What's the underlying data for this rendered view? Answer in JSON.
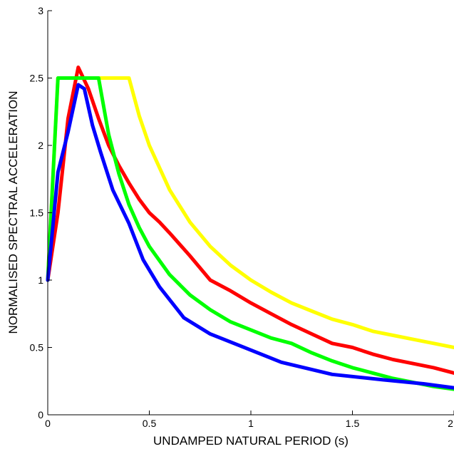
{
  "chart_data": {
    "type": "line",
    "xlabel": "UNDAMPED NATURAL PERIOD (s)",
    "ylabel": "NORMALISED SPECTRAL ACCELERATION",
    "xlim": [
      0,
      2
    ],
    "ylim": [
      0,
      3
    ],
    "x_ticks": [
      0,
      0.5,
      1,
      1.5,
      2
    ],
    "x_tick_labels": [
      "0",
      "0.5",
      "1",
      "1.5",
      "2"
    ],
    "y_ticks": [
      0,
      0.5,
      1,
      1.5,
      2,
      2.5,
      3
    ],
    "y_tick_labels": [
      "0",
      "0.5",
      "1",
      "1.5",
      "2",
      "2.5",
      "3"
    ],
    "grid": false,
    "series": [
      {
        "color": "#ffff00",
        "x": [
          0,
          0.05,
          0.4,
          0.45,
          0.5,
          0.6,
          0.7,
          0.8,
          0.9,
          1.0,
          1.1,
          1.2,
          1.3,
          1.4,
          1.5,
          1.6,
          1.7,
          1.8,
          1.9,
          2.0
        ],
        "y": [
          1.0,
          2.5,
          2.5,
          2.22,
          2.0,
          1.67,
          1.43,
          1.25,
          1.11,
          1.0,
          0.91,
          0.83,
          0.77,
          0.71,
          0.67,
          0.62,
          0.59,
          0.56,
          0.53,
          0.5
        ]
      },
      {
        "color": "#ff0000",
        "x": [
          0,
          0.05,
          0.1,
          0.15,
          0.2,
          0.25,
          0.3,
          0.35,
          0.4,
          0.45,
          0.5,
          0.55,
          0.6,
          0.7,
          0.8,
          0.9,
          1.0,
          1.1,
          1.2,
          1.3,
          1.4,
          1.5,
          1.6,
          1.7,
          1.8,
          1.9,
          2.0
        ],
        "y": [
          1.0,
          1.5,
          2.2,
          2.58,
          2.42,
          2.2,
          2.0,
          1.85,
          1.72,
          1.6,
          1.5,
          1.43,
          1.35,
          1.18,
          1.0,
          0.92,
          0.83,
          0.75,
          0.67,
          0.6,
          0.53,
          0.5,
          0.45,
          0.41,
          0.38,
          0.35,
          0.31
        ]
      },
      {
        "color": "#00ff00",
        "x": [
          0,
          0.05,
          0.25,
          0.3,
          0.35,
          0.4,
          0.45,
          0.5,
          0.6,
          0.7,
          0.8,
          0.9,
          1.0,
          1.1,
          1.2,
          1.3,
          1.4,
          1.5,
          1.6,
          1.7,
          1.8,
          1.9,
          2.0
        ],
        "y": [
          1.0,
          2.5,
          2.5,
          2.08,
          1.79,
          1.56,
          1.39,
          1.25,
          1.04,
          0.89,
          0.78,
          0.69,
          0.63,
          0.57,
          0.53,
          0.46,
          0.4,
          0.35,
          0.31,
          0.27,
          0.24,
          0.21,
          0.19
        ]
      },
      {
        "color": "#0000ff",
        "x": [
          0,
          0.05,
          0.1,
          0.15,
          0.18,
          0.22,
          0.26,
          0.32,
          0.4,
          0.47,
          0.55,
          0.67,
          0.8,
          0.95,
          1.15,
          1.4,
          1.65,
          1.85,
          2.0
        ],
        "y": [
          1.0,
          1.8,
          2.1,
          2.45,
          2.42,
          2.15,
          1.95,
          1.67,
          1.42,
          1.15,
          0.95,
          0.72,
          0.6,
          0.51,
          0.39,
          0.3,
          0.26,
          0.23,
          0.2
        ]
      }
    ]
  }
}
